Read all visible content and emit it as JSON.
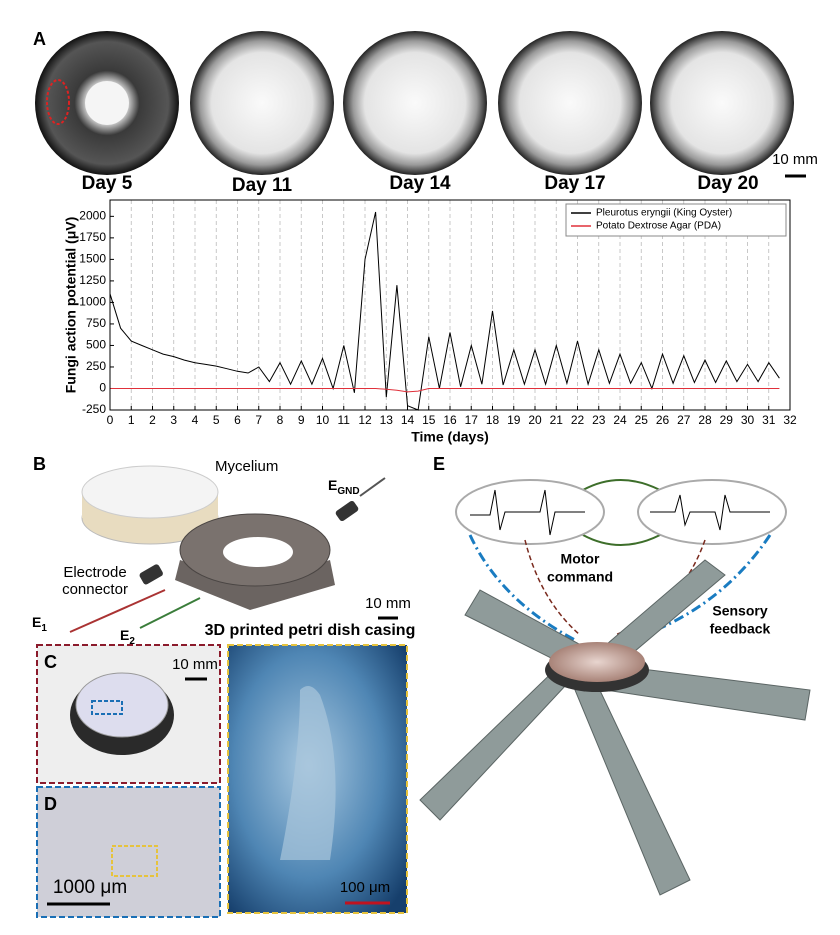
{
  "panels": {
    "A": {
      "label": "A",
      "days": [
        "Day 5",
        "Day 11",
        "Day 14",
        "Day 17",
        "Day 20"
      ],
      "scale": "10 mm"
    },
    "B": {
      "label": "B",
      "mycelium": "Mycelium",
      "egnd": {
        "main": "E",
        "sub": "GND"
      },
      "connector": [
        "Electrode",
        "connector"
      ],
      "e1": {
        "main": "E",
        "sub": "1"
      },
      "e2": {
        "main": "E",
        "sub": "2"
      },
      "scale": "10 mm",
      "caption": "3D printed petri dish casing"
    },
    "C": {
      "label": "C",
      "scale": "10 mm"
    },
    "D": {
      "label": "D",
      "scale": "1000 μm"
    },
    "zoom": {
      "scale": "100 μm"
    },
    "E": {
      "label": "E",
      "motor": [
        "Motor",
        "command"
      ],
      "sensory": [
        "Sensory",
        "feedback"
      ]
    }
  },
  "chart_data": {
    "type": "line",
    "x_label": "Time (days)",
    "y_label": "Fungi action potential (μV)",
    "x": [
      0,
      0.5,
      1,
      1.5,
      2,
      2.5,
      3,
      3.5,
      4,
      4.5,
      5,
      5.5,
      6,
      6.5,
      7,
      7.5,
      8,
      8.5,
      9,
      9.5,
      10,
      10.5,
      11,
      11.5,
      12,
      12.5,
      13,
      13.5,
      14,
      14.5,
      15,
      15.5,
      16,
      16.5,
      17,
      17.5,
      18,
      18.5,
      19,
      19.5,
      20,
      20.5,
      21,
      21.5,
      22,
      22.5,
      23,
      23.5,
      24,
      24.5,
      25,
      25.5,
      26,
      26.5,
      27,
      27.5,
      28,
      28.5,
      29,
      29.5,
      30,
      30.5,
      31,
      31.5
    ],
    "series": [
      {
        "name": "Pleurotus eryngii (King Oyster)",
        "color": "#000000",
        "values": [
          1100,
          700,
          550,
          500,
          450,
          400,
          370,
          330,
          300,
          280,
          260,
          230,
          200,
          180,
          250,
          80,
          300,
          50,
          320,
          50,
          350,
          0,
          500,
          -50,
          1500,
          2050,
          -100,
          1200,
          -200,
          -250,
          600,
          0,
          650,
          20,
          500,
          50,
          900,
          40,
          450,
          50,
          450,
          50,
          500,
          60,
          550,
          50,
          450,
          60,
          400,
          60,
          300,
          0,
          400,
          60,
          380,
          70,
          330,
          70,
          320,
          80,
          280,
          80,
          300,
          120
        ]
      },
      {
        "name": "Potato Dextrose Agar (PDA)",
        "color": "#e0303a",
        "values": [
          0,
          0,
          0,
          0,
          0,
          0,
          0,
          0,
          0,
          0,
          0,
          0,
          0,
          0,
          0,
          0,
          0,
          0,
          0,
          0,
          0,
          0,
          0,
          0,
          0,
          0,
          -10,
          -20,
          -40,
          -30,
          0,
          0,
          0,
          0,
          0,
          0,
          0,
          0,
          0,
          0,
          0,
          0,
          0,
          0,
          0,
          0,
          0,
          0,
          0,
          0,
          0,
          0,
          0,
          0,
          0,
          0,
          0,
          0,
          0,
          0,
          0,
          0,
          0,
          0
        ]
      }
    ],
    "xlim": [
      0,
      32
    ],
    "xticks": [
      0,
      1,
      2,
      3,
      4,
      5,
      6,
      7,
      8,
      9,
      10,
      11,
      12,
      13,
      14,
      15,
      16,
      17,
      18,
      19,
      20,
      21,
      22,
      23,
      24,
      25,
      26,
      27,
      28,
      29,
      30,
      31,
      32
    ],
    "ylim": [
      -250,
      2190
    ],
    "yticks": [
      -250,
      0,
      250,
      500,
      750,
      1000,
      1250,
      1500,
      1750,
      2000
    ],
    "grid": true,
    "legend": "upper-right"
  }
}
